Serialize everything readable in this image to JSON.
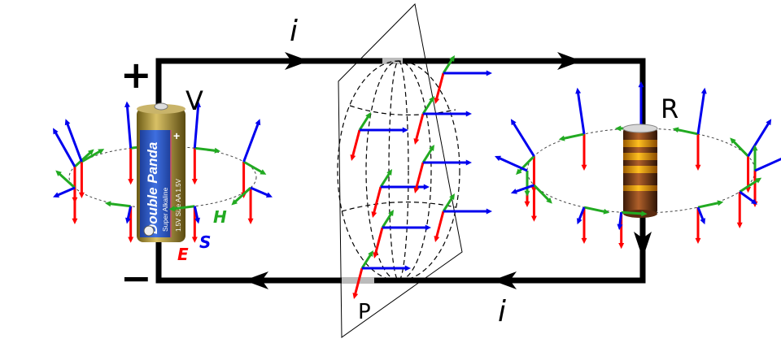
{
  "labels": {
    "current_top": "i",
    "current_bottom": "i",
    "plus": "+",
    "minus": "−",
    "voltage": "V",
    "resistor": "R",
    "plane": "P",
    "field_h": "H",
    "field_s": "S",
    "field_e": "E"
  },
  "battery": {
    "brand": "Double Panda",
    "type": "Super Alkaline",
    "spec": "1.5V Size AA 1.5V",
    "terminal": "+"
  },
  "colors": {
    "wire": "#000000",
    "E": "#ff0000",
    "H": "#22aa22",
    "S": "#0000ee",
    "battery_label": "#2a5bd7",
    "battery_cap": "#a08a2a"
  }
}
